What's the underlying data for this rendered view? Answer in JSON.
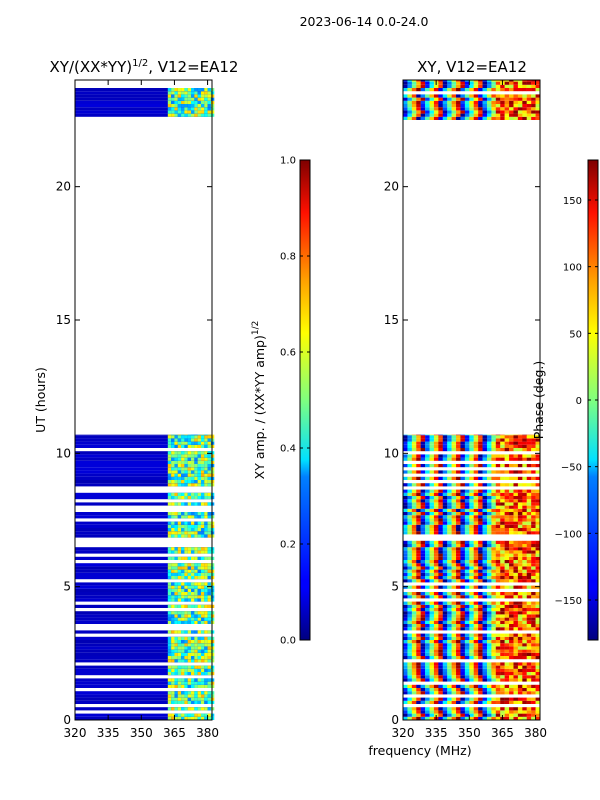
{
  "suptitle": "2023-06-14 0.0-24.0",
  "chart_data": [
    {
      "type": "heatmap",
      "title": "XY/(XX*YY)^{1/2}, V12=EA12",
      "title_main": "XY/(XX*YY)",
      "title_sup": "1/2",
      "title_tail": ", V12=EA12",
      "xlabel": "",
      "ylabel": "UT (hours)",
      "xlim": [
        320,
        382
      ],
      "ylim": [
        0,
        24
      ],
      "xticks": [
        320,
        335,
        350,
        365,
        380
      ],
      "yticks": [
        0,
        5,
        10,
        15,
        20
      ],
      "data_blocks_hours": [
        [
          0,
          10.7
        ],
        [
          22.5,
          24
        ]
      ],
      "colorbar": {
        "label": "XY amp. / (XX*YY amp)^{1/2}",
        "label_main": "XY amp. / (XX*YY amp)",
        "label_sup": "1/2",
        "range": [
          0.0,
          1.0
        ],
        "ticks": [
          "0.0",
          "0.2",
          "0.4",
          "0.6",
          "0.8",
          "1.0"
        ],
        "tick_values": [
          0.0,
          0.2,
          0.4,
          0.6,
          0.8,
          1.0
        ],
        "colormap": "jet"
      }
    },
    {
      "type": "heatmap",
      "title": "XY, V12=EA12",
      "xlabel": "frequency (MHz)",
      "ylabel": "",
      "xlim": [
        320,
        382
      ],
      "ylim": [
        0,
        24
      ],
      "xticks": [
        320,
        335,
        350,
        365,
        380
      ],
      "yticks": [
        0,
        5,
        10,
        15,
        20
      ],
      "data_blocks_hours": [
        [
          0,
          10.7
        ],
        [
          22.5,
          24
        ]
      ],
      "colorbar": {
        "label": "Phase (deg.)",
        "range": [
          -180,
          180
        ],
        "ticks": [
          "−150",
          "−100",
          "−50",
          "0",
          "50",
          "100",
          "150"
        ],
        "tick_values": [
          -150,
          -100,
          -50,
          0,
          50,
          100,
          150
        ],
        "colormap": "jet"
      }
    }
  ]
}
